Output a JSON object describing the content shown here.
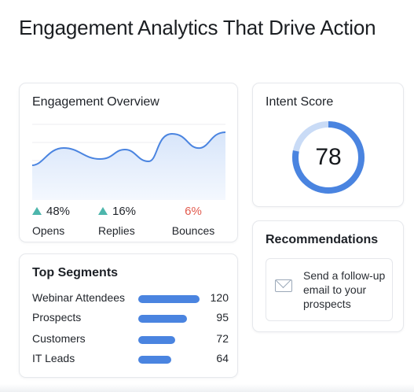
{
  "page": {
    "title": "Engagement Analytics That Drive Action"
  },
  "overview": {
    "title": "Engagement Overview",
    "stats": [
      {
        "value": "48%",
        "label": "Opens",
        "trend": "up"
      },
      {
        "value": "16%",
        "label": "Replies",
        "trend": "up"
      },
      {
        "value": "6%",
        "label": "Bounces",
        "trend": "none"
      }
    ],
    "colors": {
      "line": "#4a84e0",
      "fill": "#dbe8fb",
      "up": "#4db6ac",
      "bounce": "#e25b4e"
    }
  },
  "intent": {
    "title": "Intent Score",
    "score": "78",
    "fraction": 0.78,
    "colors": {
      "arc": "#4a84e0",
      "track": "#c9dbf6"
    }
  },
  "recommendations": {
    "title": "Recommendations",
    "icon": "mail-icon",
    "text": "Send a follow-up email to your prospects"
  },
  "segments": {
    "title": "Top Segments",
    "max": 120,
    "items": [
      {
        "name": "Webinar Attendees",
        "value": 120
      },
      {
        "name": "Prospects",
        "value": 95
      },
      {
        "name": "Customers",
        "value": 72
      },
      {
        "name": "IT Leads",
        "value": 64
      }
    ]
  }
}
